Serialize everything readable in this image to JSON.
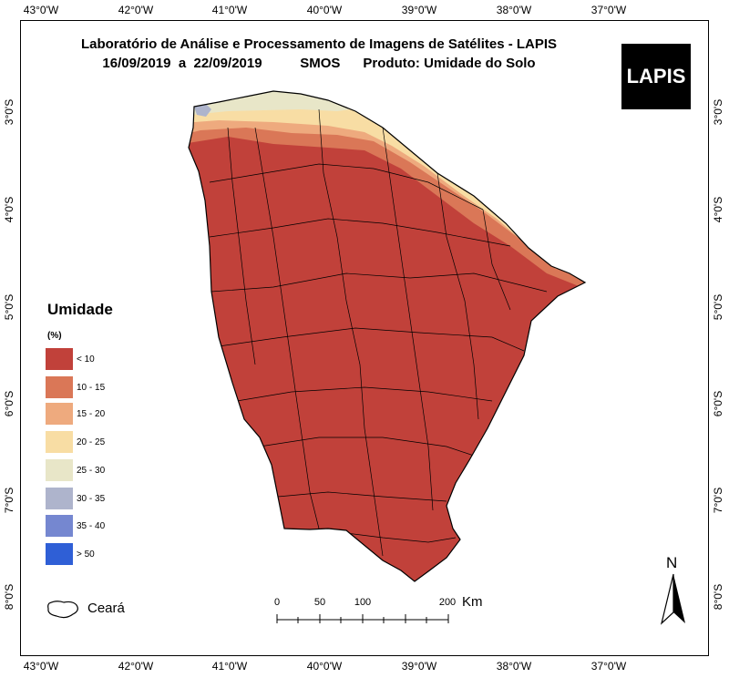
{
  "title": {
    "line1": "Laboratório de Análise e Processamento de Imagens de Satélites - LAPIS",
    "line2": "16/09/2019  a  22/09/2019          SMOS      Produto: Umidade do Solo"
  },
  "logo": {
    "text": "LAPIS"
  },
  "axes": {
    "longitudes": [
      "43°0'W",
      "42°0'W",
      "41°0'W",
      "40°0'W",
      "39°0'W",
      "38°0'W",
      "37°0'W"
    ],
    "latitudes": [
      "3°0'S",
      "4°0'S",
      "5°0'S",
      "6°0'S",
      "7°0'S",
      "8°0'S"
    ]
  },
  "legend": {
    "title": "Umidade",
    "unit": "(%)",
    "classes": [
      {
        "label": "< 10",
        "color": "#c1413a"
      },
      {
        "label": "10 - 15",
        "color": "#da7757"
      },
      {
        "label": "15 - 20",
        "color": "#eeaa7e"
      },
      {
        "label": "20 - 25",
        "color": "#f8dda4"
      },
      {
        "label": "25 - 30",
        "color": "#e8e6c8"
      },
      {
        "label": "30 - 35",
        "color": "#aeb4cc"
      },
      {
        "label": "35 - 40",
        "color": "#7587d0"
      },
      {
        "label": "> 50",
        "color": "#2f5fd6"
      }
    ]
  },
  "boundary_legend": {
    "label": "Ceará"
  },
  "scale_bar": {
    "ticks": [
      "0",
      "50",
      "100",
      "200"
    ],
    "unit": "Km"
  },
  "north_arrow": {
    "label": "N"
  },
  "colors": {
    "dry": "#c1413a",
    "border": "#000000"
  }
}
